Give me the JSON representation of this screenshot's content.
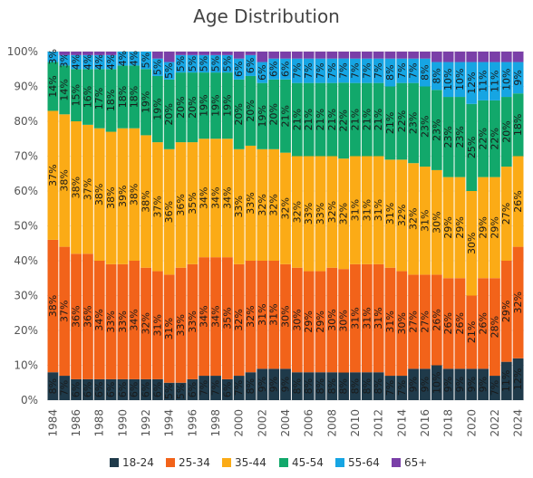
{
  "chart_data": {
    "type": "bar",
    "stacked": true,
    "normalized": true,
    "title": "Age Distribution",
    "xlabel": "",
    "ylabel": "",
    "ylim": [
      0,
      100
    ],
    "y_ticks": [
      "0%",
      "10%",
      "20%",
      "30%",
      "40%",
      "50%",
      "60%",
      "70%",
      "80%",
      "90%",
      "100%"
    ],
    "x_tick_labels": [
      "1984",
      "1986",
      "1988",
      "1990",
      "1992",
      "1994",
      "1996",
      "1998",
      "2000",
      "2002",
      "2004",
      "2006",
      "2008",
      "2010",
      "2012",
      "2014",
      "2016",
      "2018",
      "2020",
      "2022",
      "2024"
    ],
    "categories": [
      "1984",
      "1985",
      "1986",
      "1987",
      "1988",
      "1989",
      "1990",
      "1991",
      "1992",
      "1993",
      "1994",
      "1995",
      "1996",
      "1997",
      "1998",
      "1999",
      "2000",
      "2001",
      "2002",
      "2003",
      "2004",
      "2005",
      "2006",
      "2007",
      "2008",
      "2009",
      "2010",
      "2011",
      "2012",
      "2013",
      "2014",
      "2015",
      "2016",
      "2017",
      "2018",
      "2019",
      "2020",
      "2021",
      "2022",
      "2023",
      "2024"
    ],
    "grid": true,
    "legend_position": "bottom",
    "series": [
      {
        "name": "18-24",
        "color": "#1f3a4a",
        "values": [
          8,
          7,
          6,
          6,
          6,
          6,
          6,
          6,
          6,
          6,
          5,
          5,
          6,
          7,
          7,
          6,
          7,
          8,
          9,
          9,
          9,
          8,
          8,
          8,
          8,
          8,
          8,
          8,
          8,
          7,
          7,
          9,
          9,
          10,
          9,
          9,
          9,
          9,
          7,
          11,
          12
        ]
      },
      {
        "name": "25-34",
        "color": "#f2631a",
        "values": [
          38,
          37,
          36,
          36,
          34,
          33,
          33,
          34,
          32,
          31,
          31,
          33,
          33,
          34,
          34,
          35,
          32,
          32,
          31,
          31,
          30,
          30,
          29,
          29,
          30,
          30,
          31,
          31,
          31,
          31,
          30,
          27,
          27,
          26,
          26,
          26,
          21,
          26,
          28,
          29,
          32
        ]
      },
      {
        "name": "35-44",
        "color": "#fbab16",
        "values": [
          37,
          38,
          38,
          37,
          38,
          38,
          39,
          38,
          38,
          37,
          36,
          36,
          35,
          34,
          34,
          34,
          33,
          33,
          32,
          32,
          32,
          32,
          33,
          33,
          32,
          32,
          31,
          31,
          31,
          31,
          32,
          32,
          31,
          30,
          29,
          29,
          30,
          29,
          29,
          27,
          26
        ]
      },
      {
        "name": "45-54",
        "color": "#12a86b",
        "values": [
          14,
          14,
          15,
          16,
          17,
          18,
          18,
          18,
          19,
          19,
          20,
          20,
          20,
          19,
          19,
          19,
          20,
          20,
          19,
          20,
          21,
          21,
          21,
          21,
          21,
          22,
          21,
          21,
          21,
          21,
          22,
          23,
          23,
          23,
          23,
          23,
          25,
          22,
          22,
          20,
          18
        ]
      },
      {
        "name": "55-64",
        "color": "#16a5e3",
        "values": [
          3,
          3,
          4,
          4,
          4,
          4,
          4,
          4,
          5,
          5,
          5,
          5,
          5,
          5,
          5,
          5,
          6,
          6,
          6,
          6,
          6,
          7,
          7,
          7,
          7,
          7,
          7,
          7,
          7,
          8,
          7,
          7,
          8,
          8,
          10,
          10,
          12,
          11,
          11,
          10,
          9
        ]
      },
      {
        "name": "65+",
        "color": "#7a3fa8",
        "values": [
          0,
          1,
          1,
          1,
          1,
          1,
          0,
          0,
          0,
          2,
          3,
          1,
          1,
          1,
          1,
          1,
          2,
          1,
          3,
          2,
          2,
          2,
          2,
          2,
          2,
          2,
          2,
          2,
          2,
          2,
          2,
          2,
          2,
          3,
          3,
          3,
          3,
          3,
          3,
          3,
          3
        ]
      }
    ],
    "data_labels": [
      [
        "8%",
        "7%",
        "6%",
        "6%",
        "6%",
        "6%",
        "6%",
        "6%",
        "6%",
        "6%",
        "5%",
        "5%",
        "6%",
        "7%",
        "7%",
        "6%",
        "7%",
        "8%",
        "9%",
        "9%",
        "9%",
        "8%",
        "8%",
        "8%",
        "8%",
        "8%",
        "8%",
        "8%",
        "8%",
        "7%",
        "7%",
        "9%",
        "9%",
        "10%",
        "9%",
        "9%",
        "9%",
        "9%",
        "7%",
        "11%",
        "12%"
      ],
      [
        "38%",
        "37%",
        "36%",
        "36%",
        "34%",
        "33%",
        "33%",
        "34%",
        "32%",
        "31%",
        "31%",
        "33%",
        "33%",
        "34%",
        "34%",
        "35%",
        "32%",
        "32%",
        "31%",
        "31%",
        "30%",
        "30%",
        "29%",
        "29%",
        "30%",
        "30%",
        "31%",
        "31%",
        "31%",
        "31%",
        "30%",
        "27%",
        "27%",
        "26%",
        "26%",
        "26%",
        "21%",
        "26%",
        "28%",
        "29%",
        "32%"
      ],
      [
        "37%",
        "38%",
        "38%",
        "37%",
        "38%",
        "38%",
        "39%",
        "38%",
        "38%",
        "37%",
        "36%",
        "36%",
        "35%",
        "34%",
        "34%",
        "34%",
        "33%",
        "33%",
        "32%",
        "32%",
        "32%",
        "32%",
        "33%",
        "33%",
        "32%",
        "32%",
        "31%",
        "31%",
        "31%",
        "31%",
        "32%",
        "32%",
        "31%",
        "30%",
        "29%",
        "29%",
        "30%",
        "29%",
        "29%",
        "27%",
        "26%"
      ],
      [
        "14%",
        "14%",
        "15%",
        "16%",
        "17%",
        "18%",
        "18%",
        "18%",
        "19%",
        "19%",
        "20%",
        "20%",
        "20%",
        "19%",
        "19%",
        "19%",
        "20%",
        "20%",
        "19%",
        "20%",
        "21%",
        "21%",
        "21%",
        "21%",
        "21%",
        "22%",
        "21%",
        "21%",
        "21%",
        "21%",
        "22%",
        "23%",
        "23%",
        "23%",
        "23%",
        "23%",
        "25%",
        "22%",
        "22%",
        "20%",
        "18%"
      ],
      [
        "3%",
        "3%",
        "4%",
        "4%",
        "4%",
        "4%",
        "4%",
        "4%",
        "5%",
        "5%",
        "5%",
        "5%",
        "5%",
        "5%",
        "5%",
        "5%",
        "6%",
        "6%",
        "6%",
        "6%",
        "6%",
        "7%",
        "7%",
        "7%",
        "7%",
        "7%",
        "7%",
        "7%",
        "7%",
        "8%",
        "7%",
        "7%",
        "8%",
        "8%",
        "10%",
        "10%",
        "12%",
        "11%",
        "11%",
        "10%",
        "9%"
      ],
      []
    ]
  }
}
